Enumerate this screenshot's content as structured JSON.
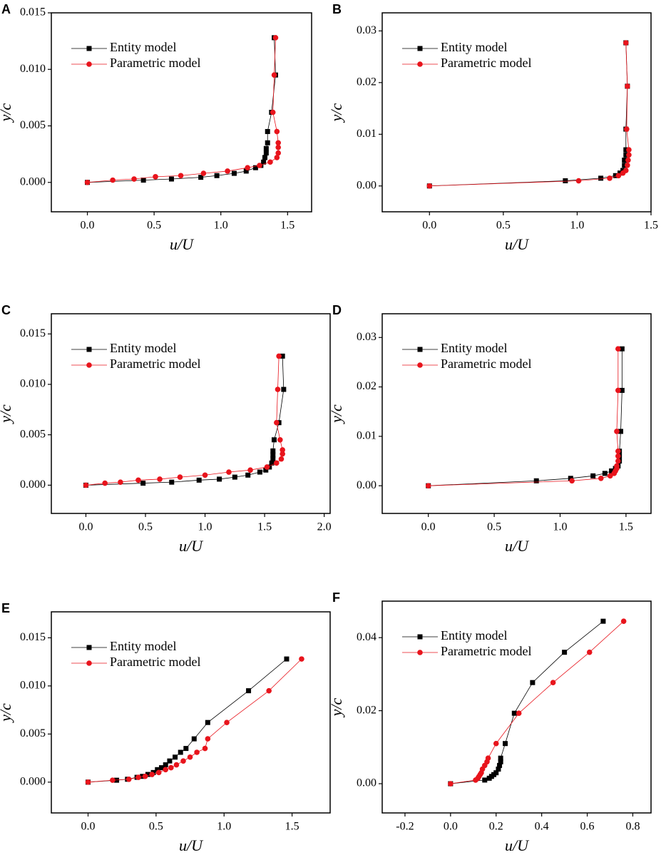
{
  "chart_data": [
    {
      "panel_label": "A",
      "type": "line",
      "xlabel": "u/U",
      "ylabel": "y/c",
      "xlim": [
        -0.27,
        1.68
      ],
      "ylim": [
        -0.0026,
        0.015
      ],
      "xticks": [
        {
          "value": 0,
          "label": "0.0"
        },
        0.5,
        {
          "value": 1,
          "label": "1.0"
        },
        1.5
      ],
      "yticks": [
        {
          "value": 0,
          "label": "0.000"
        },
        0.005,
        {
          "value": 0.01,
          "label": "0.010"
        },
        0.015
      ],
      "legend": "upper left",
      "series": [
        {
          "name": "Entity model",
          "color": "#000000",
          "marker": "square",
          "x": [
            0,
            0.42,
            0.63,
            0.85,
            0.97,
            1.1,
            1.19,
            1.26,
            1.3,
            1.32,
            1.33,
            1.34,
            1.34,
            1.35,
            1.35,
            1.38,
            1.41,
            1.4
          ],
          "values": [
            0,
            0.0002,
            0.0003,
            0.00045,
            0.0006,
            0.0008,
            0.001,
            0.0013,
            0.0015,
            0.0018,
            0.0022,
            0.0026,
            0.003,
            0.0035,
            0.0045,
            0.0062,
            0.0095,
            0.0128
          ]
        },
        {
          "name": "Parametric model",
          "color": "#e8141c",
          "marker": "circle",
          "x": [
            0,
            0.19,
            0.35,
            0.51,
            0.7,
            0.87,
            1.05,
            1.2,
            1.29,
            1.37,
            1.42,
            1.43,
            1.43,
            1.43,
            1.42,
            1.39,
            1.4,
            1.41
          ],
          "values": [
            0,
            0.0002,
            0.0003,
            0.0005,
            0.0006,
            0.0008,
            0.001,
            0.0013,
            0.0015,
            0.0018,
            0.0022,
            0.0026,
            0.0031,
            0.0035,
            0.0045,
            0.0062,
            0.0095,
            0.0128
          ]
        }
      ]
    },
    {
      "panel_label": "B",
      "type": "line",
      "xlabel": "u/U",
      "ylabel": "y/c",
      "xlim": [
        -0.32,
        1.5
      ],
      "ylim": [
        -0.005,
        0.0335
      ],
      "xticks": [
        {
          "value": 0,
          "label": "0.0"
        },
        0.5,
        {
          "value": 1,
          "label": "1.0"
        },
        1.5
      ],
      "yticks": [
        {
          "value": 0,
          "label": "0.00"
        },
        0.01,
        0.02,
        0.03
      ],
      "legend": "upper left",
      "series": [
        {
          "name": "Entity model",
          "color": "#000000",
          "marker": "square",
          "x": [
            0,
            0.92,
            1.16,
            1.26,
            1.29,
            1.31,
            1.32,
            1.32,
            1.33,
            1.33,
            1.33,
            1.34,
            1.33
          ],
          "values": [
            0,
            0.001,
            0.0015,
            0.002,
            0.0025,
            0.003,
            0.004,
            0.005,
            0.006,
            0.007,
            0.011,
            0.0193,
            0.0277
          ]
        },
        {
          "name": "Parametric model",
          "color": "#e8141c",
          "marker": "circle",
          "x": [
            0,
            1.01,
            1.22,
            1.28,
            1.31,
            1.33,
            1.34,
            1.345,
            1.35,
            1.35,
            1.335,
            1.34,
            1.33
          ],
          "values": [
            0,
            0.001,
            0.0015,
            0.002,
            0.0025,
            0.003,
            0.004,
            0.005,
            0.006,
            0.007,
            0.011,
            0.0193,
            0.0277
          ]
        }
      ]
    },
    {
      "panel_label": "C",
      "type": "line",
      "xlabel": "u/U",
      "ylabel": "y/c",
      "xlim": [
        -0.29,
        2.05
      ],
      "ylim": [
        -0.0028,
        0.017
      ],
      "xticks": [
        {
          "value": 0,
          "label": "0.0"
        },
        0.5,
        {
          "value": 1,
          "label": "1.0"
        },
        1.5,
        {
          "value": 2,
          "label": "2.0"
        }
      ],
      "yticks": [
        {
          "value": 0,
          "label": "0.000"
        },
        0.005,
        {
          "value": 0.01,
          "label": "0.010"
        },
        0.015
      ],
      "legend": "upper left",
      "series": [
        {
          "name": "Entity model",
          "color": "#000000",
          "marker": "square",
          "x": [
            0,
            0.48,
            0.72,
            0.95,
            1.12,
            1.25,
            1.36,
            1.46,
            1.51,
            1.54,
            1.56,
            1.57,
            1.57,
            1.57,
            1.58,
            1.62,
            1.66,
            1.65
          ],
          "values": [
            0,
            0.0002,
            0.0003,
            0.0005,
            0.0006,
            0.0008,
            0.001,
            0.0013,
            0.0015,
            0.0018,
            0.0022,
            0.0026,
            0.003,
            0.0034,
            0.0045,
            0.0062,
            0.0095,
            0.0128
          ]
        },
        {
          "name": "Parametric model",
          "color": "#e8141c",
          "marker": "circle",
          "x": [
            0,
            0.16,
            0.29,
            0.44,
            0.62,
            0.79,
            1.0,
            1.2,
            1.38,
            1.52,
            1.6,
            1.64,
            1.65,
            1.65,
            1.63,
            1.6,
            1.61,
            1.62
          ],
          "values": [
            0,
            0.0002,
            0.0003,
            0.0005,
            0.0006,
            0.0008,
            0.001,
            0.0013,
            0.0015,
            0.0018,
            0.0022,
            0.0026,
            0.0031,
            0.0035,
            0.0045,
            0.0062,
            0.0095,
            0.0128
          ]
        }
      ]
    },
    {
      "panel_label": "D",
      "type": "line",
      "xlabel": "u/U",
      "ylabel": "y/c",
      "xlim": [
        -0.35,
        1.69
      ],
      "ylim": [
        -0.0056,
        0.0348
      ],
      "xticks": [
        {
          "value": 0,
          "label": "0.0"
        },
        0.5,
        {
          "value": 1,
          "label": "1.0"
        },
        1.5
      ],
      "yticks": [
        {
          "value": 0,
          "label": "0.00"
        },
        0.01,
        0.02,
        0.03
      ],
      "legend": "upper left",
      "series": [
        {
          "name": "Entity model",
          "color": "#000000",
          "marker": "square",
          "x": [
            0,
            0.82,
            1.08,
            1.25,
            1.34,
            1.39,
            1.42,
            1.44,
            1.45,
            1.45,
            1.45,
            1.46,
            1.47,
            1.47
          ],
          "values": [
            0,
            0.001,
            0.0015,
            0.002,
            0.0025,
            0.003,
            0.0035,
            0.004,
            0.005,
            0.006,
            0.007,
            0.011,
            0.0193,
            0.0277
          ]
        },
        {
          "name": "Parametric model",
          "color": "#e8141c",
          "marker": "circle",
          "x": [
            0,
            1.09,
            1.31,
            1.38,
            1.41,
            1.42,
            1.43,
            1.43,
            1.44,
            1.44,
            1.44,
            1.43,
            1.44,
            1.44
          ],
          "values": [
            0,
            0.001,
            0.0015,
            0.002,
            0.0025,
            0.003,
            0.0035,
            0.004,
            0.005,
            0.006,
            0.007,
            0.011,
            0.0193,
            0.0277
          ]
        }
      ]
    },
    {
      "panel_label": "E",
      "type": "line",
      "xlabel": "u/U",
      "ylabel": "y/c",
      "xlim": [
        -0.27,
        1.78
      ],
      "ylim": [
        -0.0032,
        0.0177
      ],
      "xticks": [
        {
          "value": 0,
          "label": "0.0"
        },
        0.5,
        {
          "value": 1,
          "label": "1.0"
        },
        1.5
      ],
      "yticks": [
        {
          "value": 0,
          "label": "0.000"
        },
        0.005,
        {
          "value": 0.01,
          "label": "0.010"
        },
        0.015
      ],
      "legend": "upper left",
      "series": [
        {
          "name": "Entity model",
          "color": "#000000",
          "marker": "square",
          "x": [
            0,
            0.21,
            0.29,
            0.36,
            0.4,
            0.44,
            0.48,
            0.51,
            0.54,
            0.57,
            0.6,
            0.64,
            0.68,
            0.72,
            0.78,
            0.88,
            1.18,
            1.46
          ],
          "values": [
            0,
            0.0002,
            0.0003,
            0.0005,
            0.0006,
            0.0008,
            0.001,
            0.0013,
            0.0015,
            0.0018,
            0.0022,
            0.0026,
            0.0031,
            0.0035,
            0.0045,
            0.0062,
            0.0095,
            0.0128
          ]
        },
        {
          "name": "Parametric model",
          "color": "#e8141c",
          "marker": "circle",
          "x": [
            0,
            0.18,
            0.3,
            0.37,
            0.42,
            0.47,
            0.52,
            0.57,
            0.61,
            0.65,
            0.7,
            0.75,
            0.8,
            0.86,
            0.88,
            1.02,
            1.33,
            1.57
          ],
          "values": [
            0,
            0.0002,
            0.0003,
            0.0005,
            0.0006,
            0.0008,
            0.001,
            0.0013,
            0.0015,
            0.0018,
            0.0022,
            0.0026,
            0.0031,
            0.0035,
            0.0045,
            0.0062,
            0.0095,
            0.0128
          ]
        }
      ]
    },
    {
      "panel_label": "F",
      "type": "line",
      "xlabel": "u/U",
      "ylabel": "y/c",
      "xlim": [
        -0.3,
        0.88
      ],
      "ylim": [
        -0.008,
        0.05
      ],
      "xticks": [
        -0.2,
        {
          "value": 0,
          "label": "0.0"
        },
        0.2,
        0.4,
        0.6,
        0.8
      ],
      "yticks": [
        {
          "value": 0,
          "label": "0.00"
        },
        0.02,
        0.04
      ],
      "legend": "upper left",
      "series": [
        {
          "name": "Entity model",
          "color": "#000000",
          "marker": "square",
          "x": [
            0,
            0.15,
            0.17,
            0.18,
            0.19,
            0.2,
            0.21,
            0.215,
            0.22,
            0.22,
            0.24,
            0.28,
            0.36,
            0.5,
            0.67
          ],
          "values": [
            0,
            0.001,
            0.0015,
            0.002,
            0.0025,
            0.003,
            0.004,
            0.005,
            0.006,
            0.007,
            0.011,
            0.0193,
            0.0277,
            0.036,
            0.0445
          ]
        },
        {
          "name": "Parametric model",
          "color": "#e8141c",
          "marker": "circle",
          "x": [
            0,
            0.11,
            0.12,
            0.125,
            0.13,
            0.135,
            0.14,
            0.15,
            0.16,
            0.165,
            0.2,
            0.3,
            0.45,
            0.61,
            0.76
          ],
          "values": [
            0,
            0.001,
            0.0015,
            0.002,
            0.0025,
            0.003,
            0.004,
            0.005,
            0.006,
            0.007,
            0.011,
            0.0193,
            0.0277,
            0.036,
            0.0445
          ]
        }
      ]
    }
  ]
}
